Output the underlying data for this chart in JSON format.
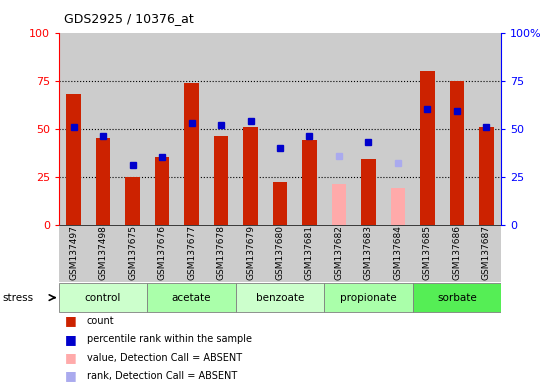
{
  "title": "GDS2925 / 10376_at",
  "samples": [
    "GSM137497",
    "GSM137498",
    "GSM137675",
    "GSM137676",
    "GSM137677",
    "GSM137678",
    "GSM137679",
    "GSM137680",
    "GSM137681",
    "GSM137682",
    "GSM137683",
    "GSM137684",
    "GSM137685",
    "GSM137686",
    "GSM137687"
  ],
  "count_values": [
    68,
    45,
    25,
    35,
    74,
    46,
    51,
    22,
    44,
    21,
    34,
    19,
    80,
    75,
    51
  ],
  "rank_values": [
    51,
    46,
    31,
    35,
    53,
    52,
    54,
    40,
    46,
    36,
    43,
    32,
    60,
    59,
    51
  ],
  "count_absent": [
    false,
    false,
    false,
    false,
    false,
    false,
    false,
    false,
    false,
    true,
    false,
    true,
    false,
    false,
    false
  ],
  "rank_absent": [
    false,
    false,
    false,
    false,
    false,
    false,
    false,
    false,
    false,
    true,
    false,
    true,
    false,
    false,
    false
  ],
  "groups": [
    {
      "name": "control",
      "start": 0,
      "end": 3
    },
    {
      "name": "acetate",
      "start": 3,
      "end": 6
    },
    {
      "name": "benzoate",
      "start": 6,
      "end": 9
    },
    {
      "name": "propionate",
      "start": 9,
      "end": 12
    },
    {
      "name": "sorbate",
      "start": 12,
      "end": 15
    }
  ],
  "group_colors": [
    "#ccffcc",
    "#aaffaa",
    "#ccffcc",
    "#aaffaa",
    "#55ee55"
  ],
  "count_color": "#cc2200",
  "count_absent_color": "#ffaaaa",
  "rank_color": "#0000cc",
  "rank_absent_color": "#aaaaee",
  "bg_color": "#cccccc",
  "ylim": [
    0,
    100
  ],
  "yticks": [
    0,
    25,
    50,
    75,
    100
  ],
  "bar_width": 0.5,
  "stress_label": "stress"
}
